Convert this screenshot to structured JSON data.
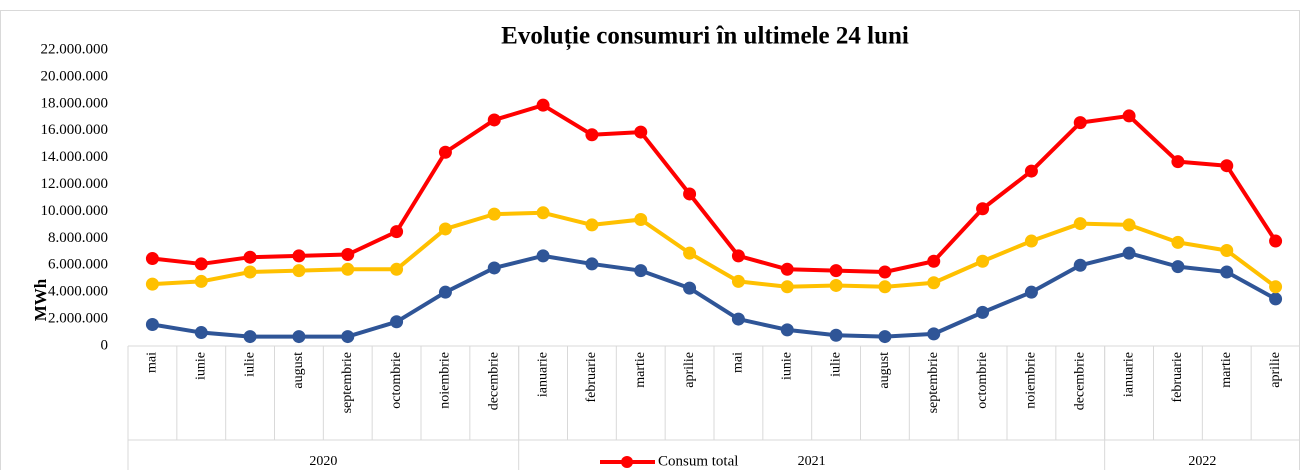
{
  "chart_data": {
    "type": "line",
    "title": "Evoluție consumuri în ultimele 24 luni",
    "y_label": "MWh",
    "categories": [
      "mai",
      "iunie",
      "iulie",
      "august",
      "septembrie",
      "octombrie",
      "noiembrie",
      "decembrie",
      "ianuarie",
      "februarie",
      "martie",
      "aprilie",
      "mai",
      "iunie",
      "iulie",
      "august",
      "septembrie",
      "octombrie",
      "noiembrie",
      "decembrie",
      "ianuarie",
      "februarie",
      "martie",
      "aprilie"
    ],
    "x_groups": [
      {
        "label": "2020",
        "span": 8
      },
      {
        "label": "2021",
        "span": 12
      },
      {
        "label": "2022",
        "span": 4
      }
    ],
    "ylim": [
      0,
      22000000
    ],
    "yticks": [
      0,
      {
        "value": 2000000,
        "label": "2.000.000"
      },
      {
        "value": 4000000,
        "label": "4.000.000"
      },
      {
        "value": 6000000,
        "label": "6.000.000"
      },
      {
        "value": 8000000,
        "label": "8.000.000"
      },
      {
        "value": 10000000,
        "label": "10.000.000"
      },
      {
        "value": 12000000,
        "label": "12.000.000"
      },
      {
        "value": 14000000,
        "label": "14.000.000"
      },
      {
        "value": 16000000,
        "label": "16.000.000"
      },
      {
        "value": 18000000,
        "label": "18.000.000"
      },
      {
        "value": 20000000,
        "label": "20.000.000"
      },
      {
        "value": 22000000,
        "label": "22.000.000"
      }
    ],
    "legend": "bottom",
    "series": [
      {
        "name": "Consum total",
        "color": "#ff0000",
        "values": [
          6500000,
          6100000,
          6600000,
          6700000,
          6800000,
          8500000,
          14400000,
          16800000,
          17900000,
          15700000,
          15900000,
          11300000,
          6700000,
          5700000,
          5600000,
          5500000,
          6300000,
          10200000,
          13000000,
          16600000,
          17100000,
          13700000,
          13400000,
          7800000
        ]
      },
      {
        "color": "#ffc000",
        "values": [
          4600000,
          4800000,
          5500000,
          5600000,
          5700000,
          5700000,
          8700000,
          9800000,
          9900000,
          9000000,
          9400000,
          6900000,
          4800000,
          4400000,
          4500000,
          4400000,
          4700000,
          6300000,
          7800000,
          9100000,
          9000000,
          7700000,
          7100000,
          4400000
        ]
      },
      {
        "color": "#2f5597",
        "values": [
          1600000,
          1000000,
          700000,
          700000,
          700000,
          1800000,
          4000000,
          5800000,
          6700000,
          6100000,
          5600000,
          4300000,
          2000000,
          1200000,
          800000,
          700000,
          900000,
          2500000,
          4000000,
          6000000,
          6900000,
          5900000,
          5500000,
          3500000
        ]
      }
    ]
  }
}
